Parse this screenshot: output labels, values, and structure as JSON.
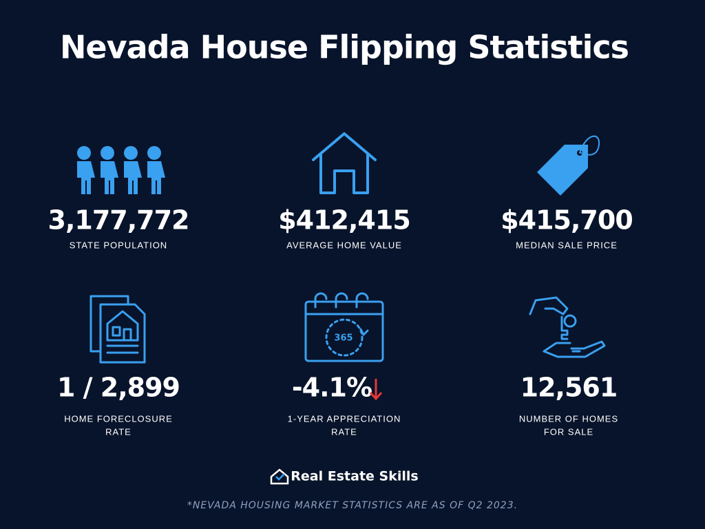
{
  "header": {
    "title": "Nevada House Flipping Statistics"
  },
  "stats": [
    {
      "value": "3,177,772",
      "label": [
        "STATE POPULATION"
      ]
    },
    {
      "value": "$412,415",
      "label": [
        "AVERAGE HOME VALUE"
      ]
    },
    {
      "value": "$415,700",
      "label": [
        "MEDIAN SALE PRICE"
      ]
    },
    {
      "value": "1 / 2,899",
      "label": [
        "HOME FORECLOSURE",
        "RATE"
      ]
    },
    {
      "value": "-4.1%",
      "label": [
        "1-YEAR APPRECIATION",
        "RATE"
      ],
      "icon_text": "365"
    },
    {
      "value": "12,561",
      "label": [
        "NUMBER OF HOMES",
        "FOR SALE"
      ]
    }
  ],
  "footer": {
    "brand": "Real Estate Skills",
    "note": "*NEVADA HOUSING MARKET STATISTICS ARE AS OF Q2 2023."
  }
}
